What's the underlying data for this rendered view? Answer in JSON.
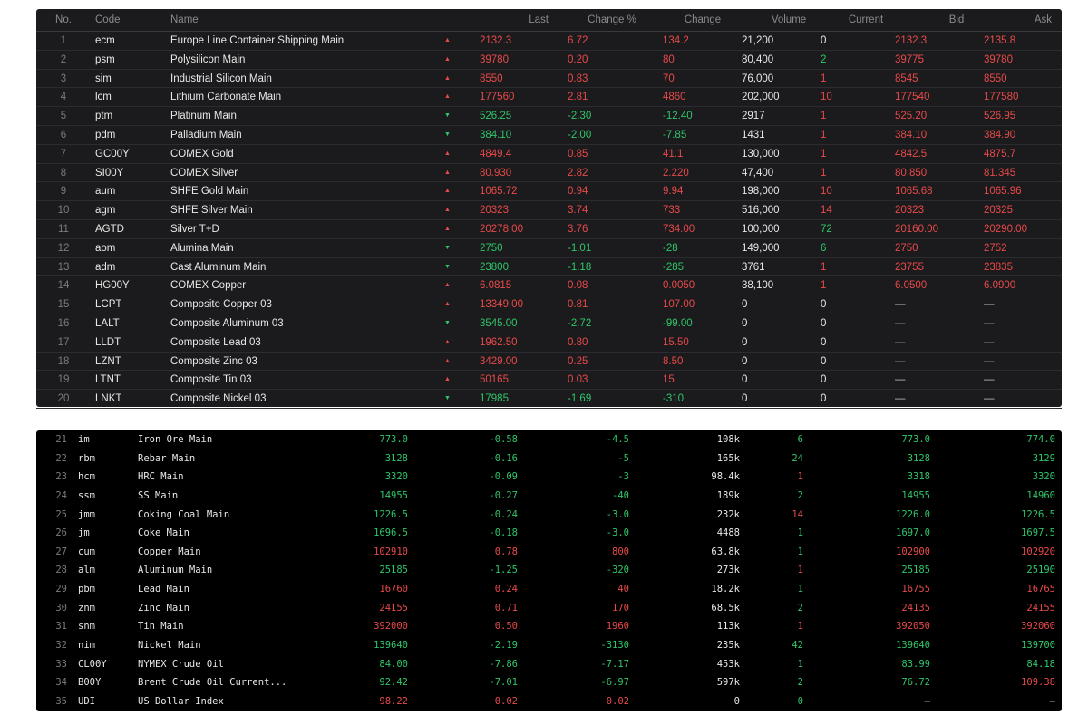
{
  "table1": {
    "headers": {
      "no": "No.",
      "code": "Code",
      "name": "Name",
      "last": "Last",
      "change_pct": "Change %",
      "change": "Change",
      "volume": "Volume",
      "current": "Current",
      "bid": "Bid",
      "ask": "Ask"
    },
    "rows": [
      {
        "no": "1",
        "code": "ecm",
        "name": "Europe Line Container Shipping Main",
        "dir": "up",
        "last": "2132.3",
        "pct": "6.72",
        "chg": "134.2",
        "vol": "21,200",
        "cur": "0",
        "cur_color": "white",
        "bid": "2132.3",
        "ask": "2135.8"
      },
      {
        "no": "2",
        "code": "psm",
        "name": "Polysilicon Main",
        "dir": "up",
        "last": "39780",
        "pct": "0.20",
        "chg": "80",
        "vol": "80,400",
        "cur": "2",
        "cur_color": "green",
        "bid": "39775",
        "ask": "39780"
      },
      {
        "no": "3",
        "code": "sim",
        "name": "Industrial Silicon Main",
        "dir": "up",
        "last": "8550",
        "pct": "0.83",
        "chg": "70",
        "vol": "76,000",
        "cur": "1",
        "cur_color": "red",
        "bid": "8545",
        "ask": "8550"
      },
      {
        "no": "4",
        "code": "lcm",
        "name": "Lithium Carbonate Main",
        "dir": "up",
        "last": "177560",
        "pct": "2.81",
        "chg": "4860",
        "vol": "202,000",
        "cur": "10",
        "cur_color": "red",
        "bid": "177540",
        "ask": "177580"
      },
      {
        "no": "5",
        "code": "ptm",
        "name": "Platinum Main",
        "dir": "down",
        "last": "526.25",
        "pct": "-2.30",
        "chg": "-12.40",
        "vol": "2917",
        "cur": "1",
        "cur_color": "red",
        "bid": "525.20",
        "ask": "526.95"
      },
      {
        "no": "6",
        "code": "pdm",
        "name": "Palladium Main",
        "dir": "down",
        "last": "384.10",
        "pct": "-2.00",
        "chg": "-7.85",
        "vol": "1431",
        "cur": "1",
        "cur_color": "red",
        "bid": "384.10",
        "ask": "384.90"
      },
      {
        "no": "7",
        "code": "GC00Y",
        "name": "COMEX Gold",
        "dir": "up",
        "last": "4849.4",
        "pct": "0.85",
        "chg": "41.1",
        "vol": "130,000",
        "cur": "1",
        "cur_color": "red",
        "bid": "4842.5",
        "ask": "4875.7"
      },
      {
        "no": "8",
        "code": "SI00Y",
        "name": "COMEX Silver",
        "dir": "up",
        "last": "80.930",
        "pct": "2.82",
        "chg": "2.220",
        "vol": "47,400",
        "cur": "1",
        "cur_color": "red",
        "bid": "80.850",
        "ask": "81.345"
      },
      {
        "no": "9",
        "code": "aum",
        "name": "SHFE Gold Main",
        "dir": "up",
        "last": "1065.72",
        "pct": "0.94",
        "chg": "9.94",
        "vol": "198,000",
        "cur": "10",
        "cur_color": "red",
        "bid": "1065.68",
        "ask": "1065.96"
      },
      {
        "no": "10",
        "code": "agm",
        "name": "SHFE Silver Main",
        "dir": "up",
        "last": "20323",
        "pct": "3.74",
        "chg": "733",
        "vol": "516,000",
        "cur": "14",
        "cur_color": "red",
        "bid": "20323",
        "ask": "20325"
      },
      {
        "no": "11",
        "code": "AGTD",
        "name": "Silver T+D",
        "dir": "up",
        "last": "20278.00",
        "pct": "3.76",
        "chg": "734.00",
        "vol": "100,000",
        "cur": "72",
        "cur_color": "green",
        "bid": "20160.00",
        "ask": "20290.00"
      },
      {
        "no": "12",
        "code": "aom",
        "name": "Alumina Main",
        "dir": "down",
        "last": "2750",
        "pct": "-1.01",
        "chg": "-28",
        "vol": "149,000",
        "cur": "6",
        "cur_color": "green",
        "bid": "2750",
        "ask": "2752"
      },
      {
        "no": "13",
        "code": "adm",
        "name": "Cast Aluminum Main",
        "dir": "down",
        "last": "23800",
        "pct": "-1.18",
        "chg": "-285",
        "vol": "3761",
        "cur": "1",
        "cur_color": "red",
        "bid": "23755",
        "ask": "23835"
      },
      {
        "no": "14",
        "code": "HG00Y",
        "name": "COMEX Copper",
        "dir": "up",
        "last": "6.0815",
        "pct": "0.08",
        "chg": "0.0050",
        "vol": "38,100",
        "cur": "1",
        "cur_color": "red",
        "bid": "6.0500",
        "ask": "6.0900"
      },
      {
        "no": "15",
        "code": "LCPT",
        "name": "Composite Copper 03",
        "dir": "up",
        "last": "13349.00",
        "pct": "0.81",
        "chg": "107.00",
        "vol": "0",
        "cur": "0",
        "cur_color": "white",
        "bid": "—",
        "ask": "—"
      },
      {
        "no": "16",
        "code": "LALT",
        "name": "Composite Aluminum 03",
        "dir": "down",
        "last": "3545.00",
        "pct": "-2.72",
        "chg": "-99.00",
        "vol": "0",
        "cur": "0",
        "cur_color": "white",
        "bid": "—",
        "ask": "—"
      },
      {
        "no": "17",
        "code": "LLDT",
        "name": "Composite Lead 03",
        "dir": "up",
        "last": "1962.50",
        "pct": "0.80",
        "chg": "15.50",
        "vol": "0",
        "cur": "0",
        "cur_color": "white",
        "bid": "—",
        "ask": "—"
      },
      {
        "no": "18",
        "code": "LZNT",
        "name": "Composite Zinc 03",
        "dir": "up",
        "last": "3429.00",
        "pct": "0.25",
        "chg": "8.50",
        "vol": "0",
        "cur": "0",
        "cur_color": "white",
        "bid": "—",
        "ask": "—"
      },
      {
        "no": "19",
        "code": "LTNT",
        "name": "Composite Tin 03",
        "dir": "up",
        "last": "50165",
        "pct": "0.03",
        "chg": "15",
        "vol": "0",
        "cur": "0",
        "cur_color": "white",
        "bid": "—",
        "ask": "—"
      },
      {
        "no": "20",
        "code": "LNKT",
        "name": "Composite Nickel 03",
        "dir": "down",
        "last": "17985",
        "pct": "-1.69",
        "chg": "-310",
        "vol": "0",
        "cur": "0",
        "cur_color": "white",
        "bid": "—",
        "ask": "—"
      }
    ]
  },
  "table2": {
    "rows": [
      {
        "no": "21",
        "code": "im",
        "name": "Iron Ore Main",
        "dir": "down",
        "last": "773.0",
        "pct": "-0.58",
        "chg": "-4.5",
        "vol": "108k",
        "cur": "6",
        "cur_color": "green",
        "bid": "773.0",
        "ask": "774.0"
      },
      {
        "no": "22",
        "code": "rbm",
        "name": "Rebar Main",
        "dir": "down",
        "last": "3128",
        "pct": "-0.16",
        "chg": "-5",
        "vol": "165k",
        "cur": "24",
        "cur_color": "green",
        "bid": "3128",
        "ask": "3129"
      },
      {
        "no": "23",
        "code": "hcm",
        "name": "HRC Main",
        "dir": "down",
        "last": "3320",
        "pct": "-0.09",
        "chg": "-3",
        "vol": "98.4k",
        "cur": "1",
        "cur_color": "red",
        "bid": "3318",
        "ask": "3320"
      },
      {
        "no": "24",
        "code": "ssm",
        "name": "SS Main",
        "dir": "down",
        "last": "14955",
        "pct": "-0.27",
        "chg": "-40",
        "vol": "189k",
        "cur": "2",
        "cur_color": "green",
        "bid": "14955",
        "ask": "14960"
      },
      {
        "no": "25",
        "code": "jmm",
        "name": "Coking Coal Main",
        "dir": "down",
        "last": "1226.5",
        "pct": "-0.24",
        "chg": "-3.0",
        "vol": "232k",
        "cur": "14",
        "cur_color": "red",
        "bid": "1226.0",
        "ask": "1226.5"
      },
      {
        "no": "26",
        "code": "jm",
        "name": "Coke Main",
        "dir": "down",
        "last": "1696.5",
        "pct": "-0.18",
        "chg": "-3.0",
        "vol": "4488",
        "cur": "1",
        "cur_color": "green",
        "bid": "1697.0",
        "ask": "1697.5"
      },
      {
        "no": "27",
        "code": "cum",
        "name": "Copper Main",
        "dir": "up",
        "last": "102910",
        "pct": "0.78",
        "chg": "800",
        "vol": "63.8k",
        "cur": "1",
        "cur_color": "green",
        "bid": "102900",
        "ask": "102920"
      },
      {
        "no": "28",
        "code": "alm",
        "name": "Aluminum Main",
        "dir": "down",
        "last": "25185",
        "pct": "-1.25",
        "chg": "-320",
        "vol": "273k",
        "cur": "1",
        "cur_color": "red",
        "bid": "25185",
        "ask": "25190"
      },
      {
        "no": "29",
        "code": "pbm",
        "name": "Lead Main",
        "dir": "up",
        "last": "16760",
        "pct": "0.24",
        "chg": "40",
        "vol": "18.2k",
        "cur": "1",
        "cur_color": "green",
        "bid": "16755",
        "ask": "16765"
      },
      {
        "no": "30",
        "code": "znm",
        "name": "Zinc Main",
        "dir": "up",
        "last": "24155",
        "pct": "0.71",
        "chg": "170",
        "vol": "68.5k",
        "cur": "2",
        "cur_color": "green",
        "bid": "24135",
        "ask": "24155"
      },
      {
        "no": "31",
        "code": "snm",
        "name": "Tin Main",
        "dir": "up",
        "last": "392000",
        "pct": "0.50",
        "chg": "1960",
        "vol": "113k",
        "cur": "1",
        "cur_color": "red",
        "bid": "392050",
        "ask": "392060"
      },
      {
        "no": "32",
        "code": "nim",
        "name": "Nickel Main",
        "dir": "down",
        "last": "139640",
        "pct": "-2.19",
        "chg": "-3130",
        "vol": "235k",
        "cur": "42",
        "cur_color": "green",
        "bid": "139640",
        "ask": "139700"
      },
      {
        "no": "33",
        "code": "CL00Y",
        "name": "NYMEX Crude Oil",
        "dir": "down",
        "last": "84.00",
        "pct": "-7.86",
        "chg": "-7.17",
        "vol": "453k",
        "cur": "1",
        "cur_color": "green",
        "bid": "83.99",
        "ask": "84.18"
      },
      {
        "no": "34",
        "code": "B00Y",
        "name": "Brent Crude Oil Current...",
        "dir": "down",
        "last": "92.42",
        "pct": "-7.01",
        "chg": "-6.97",
        "vol": "597k",
        "cur": "2",
        "cur_color": "green",
        "bid": "76.72",
        "ask": "109.38",
        "bid_color": "green",
        "ask_color": "red"
      },
      {
        "no": "35",
        "code": "UDI",
        "name": "US Dollar Index",
        "dir": "up",
        "last": "98.22",
        "pct": "0.02",
        "chg": "0.02",
        "vol": "0",
        "cur": "0",
        "cur_color": "green",
        "bid": "–",
        "ask": "–",
        "bid_color": "dim",
        "ask_color": "dim"
      }
    ]
  }
}
